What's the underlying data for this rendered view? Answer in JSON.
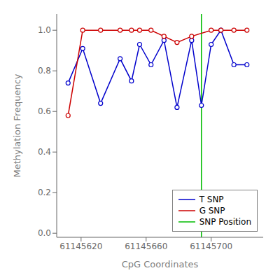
{
  "chart_data": {
    "type": "line",
    "xlabel": "CpG Coordinates",
    "ylabel": "Methylation Frequency",
    "series": [
      {
        "name": "T SNP",
        "type": "line",
        "color": "#0000cc",
        "marker": "circle",
        "x": [
          61145612,
          61145621,
          61145632,
          61145644,
          61145651,
          61145656,
          61145663,
          61145671,
          61145679,
          61145688,
          61145694,
          61145700,
          61145706,
          61145714,
          61145722
        ],
        "values": [
          0.74,
          0.91,
          0.64,
          0.86,
          0.75,
          0.93,
          0.83,
          0.95,
          0.62,
          0.95,
          0.63,
          0.93,
          1.0,
          0.83,
          0.83
        ]
      },
      {
        "name": "G SNP",
        "type": "line",
        "color": "#cc0000",
        "marker": "circle",
        "x": [
          61145612,
          61145621,
          61145632,
          61145644,
          61145651,
          61145656,
          61145663,
          61145671,
          61145679,
          61145688,
          61145700,
          61145706,
          61145714,
          61145722
        ],
        "values": [
          0.58,
          1.0,
          1.0,
          1.0,
          1.0,
          1.0,
          1.0,
          0.97,
          0.94,
          0.97,
          1.0,
          1.0,
          1.0,
          1.0
        ]
      },
      {
        "name": "SNP Position",
        "type": "vline",
        "color": "#00bb00",
        "x": [
          61145694
        ]
      }
    ],
    "xlim": [
      61145605,
      61145732
    ],
    "ylim": [
      -0.02,
      1.08
    ],
    "xticks": [
      61145620,
      61145660,
      61145700
    ],
    "yticks": [
      {
        "value": 0.0,
        "label": "0.0"
      },
      0.2,
      0.4,
      0.6,
      0.8,
      {
        "value": 1.0,
        "label": "1.0"
      }
    ],
    "grid": false,
    "legend": "lower right"
  }
}
